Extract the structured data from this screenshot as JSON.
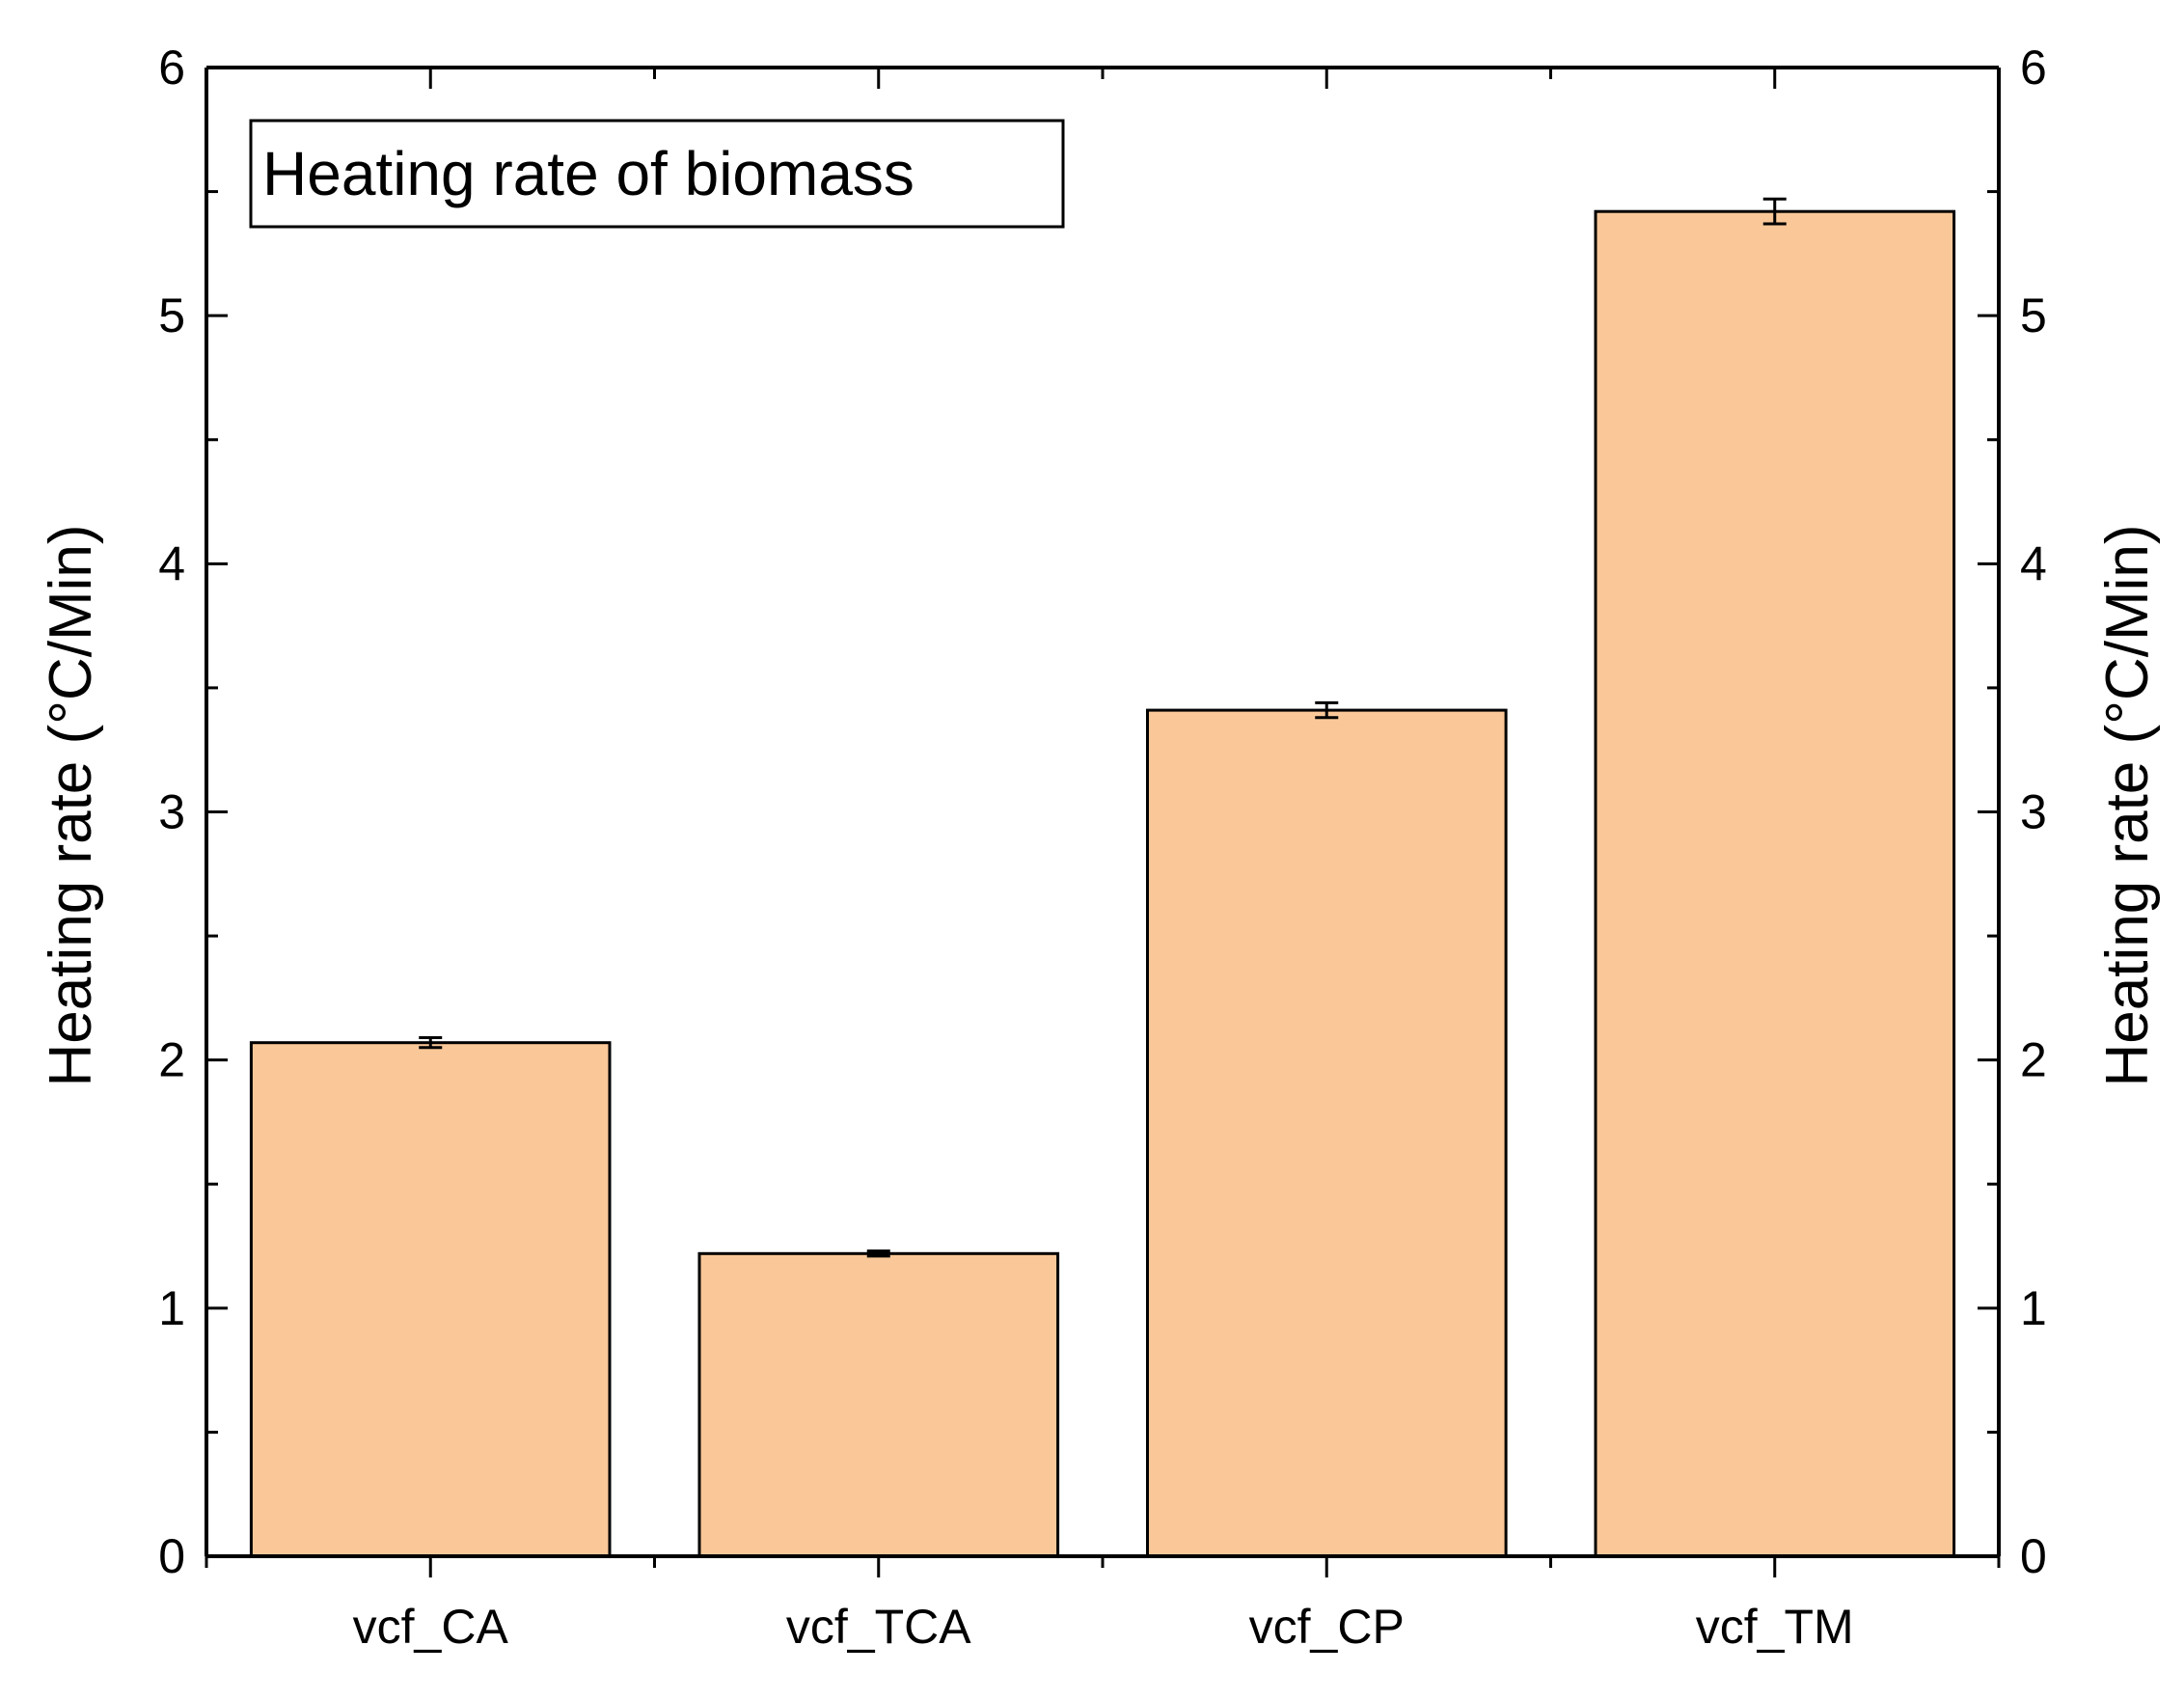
{
  "chart_data": {
    "type": "bar",
    "title": "",
    "categories": [
      "vcf_CA",
      "vcf_TCA",
      "vcf_CP",
      "vcf_TM"
    ],
    "series": [
      {
        "name": "Heating rate of biomass",
        "values": [
          2.07,
          1.22,
          3.41,
          5.42
        ],
        "errors": [
          0.02,
          0.01,
          0.03,
          0.05
        ]
      }
    ],
    "xlabel": "",
    "ylabel": "Heating rate (°C/Min)",
    "ylabel_right": "Heating rate (°C/Min)",
    "ylim": [
      0,
      6
    ],
    "yticks": [
      0,
      1,
      2,
      3,
      4,
      5,
      6
    ],
    "y_minor_step": 0.5,
    "grid": false,
    "legend_position": "top-left",
    "bar_color": "#FAC898",
    "edge_color": "#000000"
  }
}
